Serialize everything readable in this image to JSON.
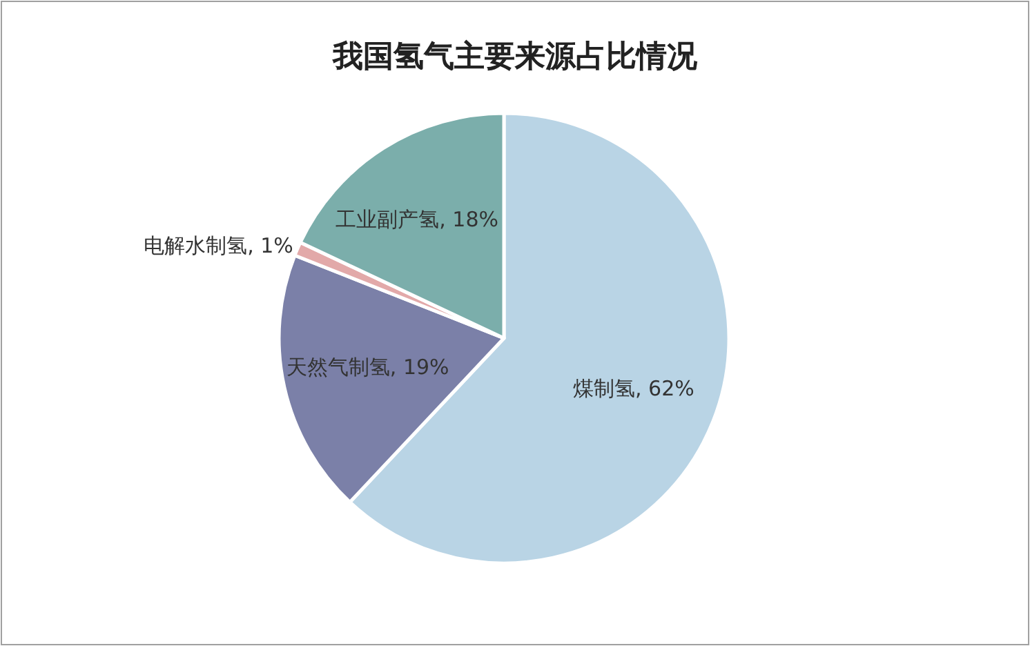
{
  "chart_data": {
    "type": "pie",
    "title": "我国氢气主要来源占比情况",
    "categories": [
      "煤制氢",
      "天然气制氢",
      "电解水制氢",
      "工业副产氢"
    ],
    "values": [
      62,
      19,
      1,
      18
    ],
    "value_labels": [
      "62%",
      "19%",
      "1%",
      "18%"
    ],
    "colors": [
      "#b9d4e5",
      "#7b80a8",
      "#e2a9a9",
      "#7baeab"
    ]
  }
}
